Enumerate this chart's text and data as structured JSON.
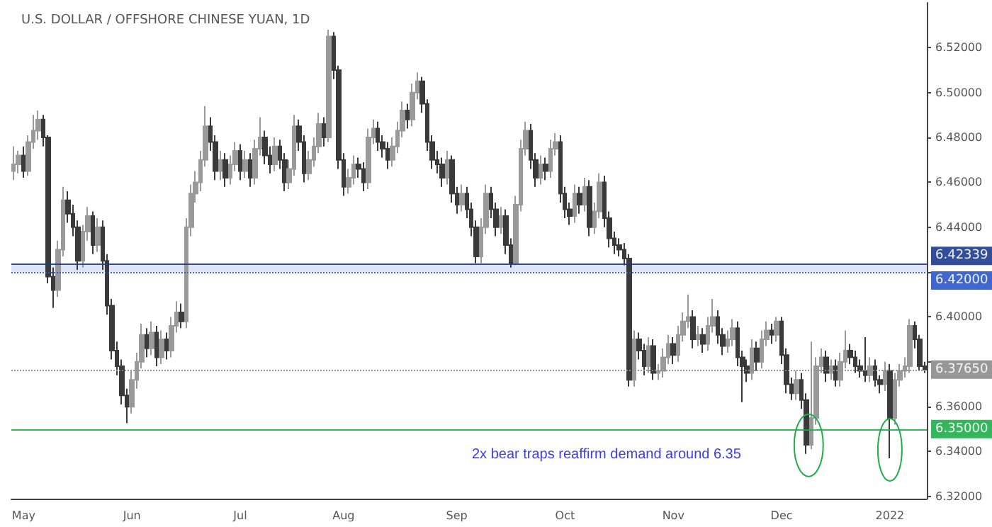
{
  "chart_data": {
    "type": "candlestick",
    "title": "U.S. DOLLAR / OFFSHORE CHINESE YUAN, 1D",
    "categories": [
      null,
      null,
      "May",
      null,
      null,
      null,
      null,
      null,
      null,
      null,
      null,
      null,
      null,
      null,
      null,
      null,
      null,
      null,
      null,
      null,
      null,
      null,
      null,
      null,
      "Jun",
      null,
      null,
      null,
      null,
      null,
      null,
      null,
      null,
      null,
      null,
      null,
      null,
      null,
      null,
      null,
      null,
      null,
      null,
      null,
      null,
      null,
      "Jul",
      null,
      null,
      null,
      null,
      null,
      null,
      null,
      null,
      null,
      null,
      null,
      null,
      null,
      null,
      null,
      null,
      null,
      null,
      null,
      null,
      "Aug",
      null,
      null,
      null,
      null,
      null,
      null,
      null,
      null,
      null,
      null,
      null,
      null,
      null,
      null,
      null,
      null,
      null,
      null,
      null,
      null,
      null,
      null,
      "Sep",
      null,
      null,
      null,
      null,
      null,
      null,
      null,
      null,
      null,
      null,
      null,
      null,
      null,
      null,
      null,
      null,
      null,
      null,
      null,
      null,
      null,
      "Oct",
      null,
      null,
      null,
      null,
      null,
      null,
      null,
      null,
      null,
      null,
      null,
      null,
      null,
      null,
      null,
      null,
      null,
      null,
      null,
      null,
      null,
      "Nov",
      null,
      null,
      null,
      null,
      null,
      null,
      null,
      null,
      null,
      null,
      null,
      null,
      null,
      null,
      null,
      null,
      null,
      null,
      null,
      null,
      null,
      "Dec",
      null,
      null,
      null,
      null,
      null,
      null,
      null,
      null,
      null,
      null,
      null,
      null,
      null,
      null,
      null,
      null,
      null,
      null,
      null,
      null,
      null,
      "2022",
      null,
      null,
      null,
      null,
      null,
      null,
      null
    ],
    "series": [
      {
        "colors": [
          "#9a9a9a",
          "#9a9a9a",
          "#3a3a3a",
          "#9a9a9a",
          "#9a9a9a",
          "#9a9a9a",
          "#3a3a3a",
          "#3a3a3a",
          "#3a3a3a",
          "#9a9a9a",
          "#9a9a9a",
          "#3a3a3a",
          "#3a3a3a",
          "#3a3a3a",
          "#9a9a9a",
          "#9a9a9a",
          "#3a3a3a",
          "#9a9a9a",
          "#3a3a3a",
          "#3a3a3a",
          "#3a3a3a",
          "#3a3a3a",
          "#3a3a3a",
          "#3a3a3a",
          "#9a9a9a",
          "#9a9a9a",
          "#9a9a9a",
          "#3a3a3a",
          "#9a9a9a",
          "#3a3a3a",
          "#9a9a9a",
          "#3a3a3a",
          "#9a9a9a",
          "#9a9a9a",
          "#3a3a3a",
          "#9a9a9a",
          "#9a9a9a",
          "#9a9a9a",
          "#9a9a9a",
          "#9a9a9a",
          "#3a3a3a",
          "#3a3a3a",
          "#9a9a9a",
          "#3a3a3a",
          "#9a9a9a",
          "#9a9a9a",
          "#3a3a3a",
          "#9a9a9a",
          "#3a3a3a",
          "#9a9a9a",
          "#9a9a9a",
          "#3a3a3a",
          "#3a3a3a",
          "#9a9a9a",
          "#3a3a3a",
          "#3a3a3a",
          "#9a9a9a",
          "#9a9a9a",
          "#3a3a3a",
          "#3a3a3a",
          "#9a9a9a",
          "#9a9a9a",
          "#9a9a9a",
          "#3a3a3a",
          "#9a9a9a",
          "#3a3a3a",
          "#3a3a3a",
          "#3a3a3a",
          "#9a9a9a",
          "#9a9a9a",
          "#3a3a3a",
          "#3a3a3a",
          "#9a9a9a",
          "#9a9a9a",
          "#3a3a3a",
          "#3a3a3a",
          "#3a3a3a",
          "#9a9a9a",
          "#9a9a9a",
          "#9a9a9a",
          "#3a3a3a",
          "#9a9a9a",
          "#9a9a9a",
          "#3a3a3a",
          "#3a3a3a",
          "#3a3a3a",
          "#3a3a3a",
          "#3a3a3a",
          "#9a9a9a",
          "#3a3a3a",
          "#3a3a3a",
          "#9a9a9a",
          "#3a3a3a",
          "#3a3a3a",
          "#3a3a3a",
          "#9a9a9a",
          "#9a9a9a",
          "#3a3a3a",
          "#3a3a3a",
          "#9a9a9a",
          "#3a3a3a",
          "#3a3a3a",
          "#9a9a9a",
          "#9a9a9a",
          "#9a9a9a",
          "#3a3a3a",
          "#3a3a3a",
          "#9a9a9a",
          "#3a3a3a",
          "#9a9a9a",
          "#9a9a9a",
          "#3a3a3a",
          "#3a3a3a",
          "#3a3a3a",
          "#9a9a9a",
          "#3a3a3a",
          "#9a9a9a",
          "#3a3a3a",
          "#9a9a9a",
          "#9a9a9a",
          "#3a3a3a",
          "#3a3a3a",
          "#3a3a3a",
          "#3a3a3a",
          "#3a3a3a",
          "#3a3a3a",
          "#9a9a9a",
          "#3a3a3a",
          "#3a3a3a",
          "#9a9a9a",
          "#3a3a3a",
          "#9a9a9a",
          "#9a9a9a",
          "#9a9a9a",
          "#3a3a3a",
          "#9a9a9a",
          "#9a9a9a",
          "#9a9a9a",
          "#3a3a3a",
          "#9a9a9a",
          "#3a3a3a",
          "#9a9a9a",
          "#9a9a9a",
          "#3a3a3a",
          "#3a3a3a",
          "#9a9a9a",
          "#9a9a9a",
          "#3a3a3a",
          "#3a3a3a",
          "#3a3a3a",
          "#9a9a9a",
          "#3a3a3a",
          "#9a9a9a",
          "#9a9a9a",
          "#3a3a3a",
          "#9a9a9a",
          "#3a3a3a",
          "#3a3a3a",
          "#3a3a3a",
          "#9a9a9a",
          "#3a3a3a",
          "#3a3a3a",
          "#9a9a9a",
          "#9a9a9a",
          "#9a9a9a",
          "#3a3a3a",
          "#9a9a9a",
          "#3a3a3a",
          "#9a9a9a",
          "#9a9a9a",
          "#3a3a3a",
          "#3a3a3a",
          "#3a3a3a",
          "#3a3a3a",
          "#9a9a9a",
          "#3a3a3a",
          "#3a3a3a",
          "#9a9a9a",
          "#3a3a3a",
          "#9a9a9a",
          "#9a9a9a",
          "#9a9a9a",
          "#9a9a9a",
          "#3a3a3a",
          "#3a3a3a",
          "#3a3a3a"
        ],
        "ohlc": [
          [
            6.465,
            6.476,
            6.461,
            6.468
          ],
          [
            6.468,
            6.474,
            6.464,
            6.472
          ],
          [
            6.472,
            6.476,
            6.462,
            6.465
          ],
          [
            6.465,
            6.481,
            6.463,
            6.478
          ],
          [
            6.478,
            6.49,
            6.475,
            6.483
          ],
          [
            6.483,
            6.492,
            6.479,
            6.488
          ],
          [
            6.488,
            6.49,
            6.476,
            6.48
          ],
          [
            6.48,
            6.481,
            6.415,
            6.418
          ],
          [
            6.418,
            6.422,
            6.404,
            6.412
          ],
          [
            6.412,
            6.434,
            6.409,
            6.43
          ],
          [
            6.43,
            6.458,
            6.427,
            6.452
          ],
          [
            6.452,
            6.456,
            6.442,
            6.446
          ],
          [
            6.446,
            6.45,
            6.436,
            6.44
          ],
          [
            6.44,
            6.443,
            6.421,
            6.425
          ],
          [
            6.425,
            6.441,
            6.422,
            6.438
          ],
          [
            6.438,
            6.449,
            6.434,
            6.445
          ],
          [
            6.445,
            6.447,
            6.428,
            6.432
          ],
          [
            6.432,
            6.444,
            6.429,
            6.44
          ],
          [
            6.44,
            6.443,
            6.421,
            6.425
          ],
          [
            6.425,
            6.428,
            6.401,
            6.405
          ],
          [
            6.405,
            6.408,
            6.381,
            6.385
          ],
          [
            6.385,
            6.389,
            6.374,
            6.378
          ],
          [
            6.378,
            6.381,
            6.361,
            6.365
          ],
          [
            6.365,
            6.368,
            6.3526,
            6.36
          ],
          [
            6.36,
            6.376,
            6.357,
            6.372
          ],
          [
            6.372,
            6.384,
            6.368,
            6.38
          ],
          [
            6.38,
            6.397,
            6.377,
            6.392
          ],
          [
            6.392,
            6.395,
            6.382,
            6.386
          ],
          [
            6.386,
            6.398,
            6.383,
            6.393
          ],
          [
            6.393,
            6.396,
            6.378,
            6.382
          ],
          [
            6.382,
            6.394,
            6.379,
            6.39
          ],
          [
            6.39,
            6.393,
            6.381,
            6.385
          ],
          [
            6.385,
            6.4,
            6.382,
            6.396
          ],
          [
            6.396,
            6.407,
            6.393,
            6.402
          ],
          [
            6.402,
            6.406,
            6.395,
            6.398
          ],
          [
            6.398,
            6.444,
            6.395,
            6.44
          ],
          [
            6.44,
            6.459,
            6.436,
            6.455
          ],
          [
            6.455,
            6.465,
            6.451,
            6.46
          ],
          [
            6.46,
            6.474,
            6.456,
            6.47
          ],
          [
            6.47,
            6.494,
            6.467,
            6.485
          ],
          [
            6.485,
            6.489,
            6.474,
            6.478
          ],
          [
            6.478,
            6.481,
            6.461,
            6.465
          ],
          [
            6.465,
            6.474,
            6.461,
            6.47
          ],
          [
            6.47,
            6.473,
            6.458,
            6.462
          ],
          [
            6.462,
            6.472,
            6.459,
            6.468
          ],
          [
            6.468,
            6.478,
            6.465,
            6.474
          ],
          [
            6.474,
            6.477,
            6.461,
            6.465
          ],
          [
            6.465,
            6.474,
            6.462,
            6.47
          ],
          [
            6.47,
            6.473,
            6.458,
            6.462
          ],
          [
            6.462,
            6.479,
            6.459,
            6.475
          ],
          [
            6.475,
            6.489,
            6.472,
            6.48
          ],
          [
            6.48,
            6.483,
            6.468,
            6.472
          ],
          [
            6.472,
            6.476,
            6.464,
            6.468
          ],
          [
            6.468,
            6.48,
            6.465,
            6.476
          ],
          [
            6.476,
            6.479,
            6.466,
            6.47
          ],
          [
            6.47,
            6.473,
            6.456,
            6.46
          ],
          [
            6.46,
            6.47,
            6.457,
            6.466
          ],
          [
            6.466,
            6.49,
            6.463,
            6.485
          ],
          [
            6.485,
            6.488,
            6.474,
            6.478
          ],
          [
            6.478,
            6.481,
            6.46,
            6.464
          ],
          [
            6.464,
            6.474,
            6.461,
            6.47
          ],
          [
            6.47,
            6.48,
            6.467,
            6.476
          ],
          [
            6.476,
            6.491,
            6.473,
            6.486
          ],
          [
            6.486,
            6.489,
            6.476,
            6.48
          ],
          [
            6.48,
            6.528,
            6.478,
            6.525
          ],
          [
            6.525,
            6.527,
            6.506,
            6.51
          ],
          [
            6.51,
            6.512,
            6.466,
            6.47
          ],
          [
            6.47,
            6.473,
            6.454,
            6.458
          ],
          [
            6.458,
            6.466,
            6.455,
            6.462
          ],
          [
            6.462,
            6.472,
            6.459,
            6.468
          ],
          [
            6.468,
            6.471,
            6.462,
            6.466
          ],
          [
            6.466,
            6.469,
            6.456,
            6.46
          ],
          [
            6.46,
            6.484,
            6.457,
            6.48
          ],
          [
            6.48,
            6.488,
            6.477,
            6.484
          ],
          [
            6.484,
            6.487,
            6.474,
            6.478
          ],
          [
            6.478,
            6.481,
            6.471,
            6.475
          ],
          [
            6.475,
            6.478,
            6.466,
            6.47
          ],
          [
            6.47,
            6.48,
            6.467,
            6.476
          ],
          [
            6.476,
            6.487,
            6.473,
            6.483
          ],
          [
            6.483,
            6.496,
            6.48,
            6.492
          ],
          [
            6.492,
            6.495,
            6.484,
            6.488
          ],
          [
            6.488,
            6.504,
            6.485,
            6.5
          ],
          [
            6.5,
            6.509,
            6.497,
            6.505
          ],
          [
            6.505,
            6.507,
            6.491,
            6.495
          ],
          [
            6.495,
            6.497,
            6.474,
            6.478
          ],
          [
            6.478,
            6.481,
            6.466,
            6.47
          ],
          [
            6.47,
            6.474,
            6.464,
            6.468
          ],
          [
            6.468,
            6.471,
            6.458,
            6.462
          ],
          [
            6.462,
            6.474,
            6.459,
            6.47
          ],
          [
            6.47,
            6.472,
            6.451,
            6.455
          ],
          [
            6.455,
            6.458,
            6.446,
            6.45
          ],
          [
            6.45,
            6.459,
            6.447,
            6.455
          ],
          [
            6.455,
            6.458,
            6.444,
            6.448
          ],
          [
            6.448,
            6.451,
            6.436,
            6.44
          ],
          [
            6.44,
            6.443,
            6.424,
            6.427
          ],
          [
            6.427,
            6.444,
            6.424,
            6.44
          ],
          [
            6.44,
            6.459,
            6.437,
            6.455
          ],
          [
            6.455,
            6.458,
            6.444,
            6.448
          ],
          [
            6.448,
            6.451,
            6.436,
            6.44
          ],
          [
            6.44,
            6.449,
            6.437,
            6.445
          ],
          [
            6.445,
            6.448,
            6.428,
            6.432
          ],
          [
            6.432,
            6.435,
            6.422,
            6.424
          ],
          [
            6.424,
            6.454,
            6.423,
            6.45
          ],
          [
            6.45,
            6.479,
            6.447,
            6.475
          ],
          [
            6.475,
            6.487,
            6.472,
            6.483
          ],
          [
            6.483,
            6.486,
            6.466,
            6.47
          ],
          [
            6.47,
            6.473,
            6.458,
            6.462
          ],
          [
            6.462,
            6.472,
            6.459,
            6.468
          ],
          [
            6.468,
            6.471,
            6.461,
            6.465
          ],
          [
            6.465,
            6.479,
            6.462,
            6.475
          ],
          [
            6.475,
            6.482,
            6.472,
            6.478
          ],
          [
            6.478,
            6.481,
            6.451,
            6.455
          ],
          [
            6.455,
            6.458,
            6.444,
            6.448
          ],
          [
            6.448,
            6.451,
            6.441,
            6.445
          ],
          [
            6.445,
            6.459,
            6.442,
            6.455
          ],
          [
            6.455,
            6.458,
            6.446,
            6.45
          ],
          [
            6.45,
            6.462,
            6.447,
            6.458
          ],
          [
            6.458,
            6.461,
            6.436,
            6.44
          ],
          [
            6.44,
            6.451,
            6.437,
            6.447
          ],
          [
            6.447,
            6.464,
            6.444,
            6.46
          ],
          [
            6.46,
            6.463,
            6.44,
            6.444
          ],
          [
            6.444,
            6.447,
            6.431,
            6.435
          ],
          [
            6.435,
            6.438,
            6.428,
            6.432
          ],
          [
            6.432,
            6.435,
            6.427,
            6.43
          ],
          [
            6.43,
            6.433,
            6.423,
            6.426
          ],
          [
            6.426,
            6.428,
            6.369,
            6.372
          ],
          [
            6.372,
            6.394,
            6.369,
            6.39
          ],
          [
            6.39,
            6.393,
            6.381,
            6.385
          ],
          [
            6.385,
            6.388,
            6.374,
            6.378
          ],
          [
            6.378,
            6.391,
            6.375,
            6.387
          ],
          [
            6.387,
            6.39,
            6.372,
            6.375
          ],
          [
            6.375,
            6.379,
            6.372,
            6.376
          ],
          [
            6.376,
            6.386,
            6.373,
            6.382
          ],
          [
            6.382,
            6.392,
            6.379,
            6.388
          ],
          [
            6.388,
            6.391,
            6.379,
            6.383
          ],
          [
            6.383,
            6.396,
            6.38,
            6.392
          ],
          [
            6.392,
            6.402,
            6.389,
            6.398
          ],
          [
            6.398,
            6.41,
            6.395,
            6.4
          ],
          [
            6.4,
            6.403,
            6.386,
            6.39
          ],
          [
            6.39,
            6.396,
            6.387,
            6.392
          ],
          [
            6.392,
            6.395,
            6.384,
            6.388
          ],
          [
            6.388,
            6.4,
            6.385,
            6.396
          ],
          [
            6.396,
            6.408,
            6.393,
            6.4
          ],
          [
            6.4,
            6.403,
            6.388,
            6.392
          ],
          [
            6.392,
            6.395,
            6.383,
            6.387
          ],
          [
            6.387,
            6.394,
            6.384,
            6.39
          ],
          [
            6.39,
            6.399,
            6.387,
            6.395
          ],
          [
            6.395,
            6.398,
            6.378,
            6.382
          ],
          [
            6.382,
            6.385,
            6.362,
            6.378
          ],
          [
            6.378,
            6.381,
            6.371,
            6.375
          ],
          [
            6.375,
            6.39,
            6.372,
            6.386
          ],
          [
            6.386,
            6.389,
            6.376,
            6.38
          ],
          [
            6.38,
            6.394,
            6.377,
            6.39
          ],
          [
            6.39,
            6.398,
            6.387,
            6.394
          ],
          [
            6.394,
            6.397,
            6.388,
            6.392
          ],
          [
            6.392,
            6.4,
            6.389,
            6.398
          ],
          [
            6.398,
            6.4,
            6.379,
            6.383
          ],
          [
            6.383,
            6.386,
            6.366,
            6.37
          ],
          [
            6.37,
            6.373,
            6.363,
            6.366
          ],
          [
            6.366,
            6.376,
            6.363,
            6.372
          ],
          [
            6.372,
            6.375,
            6.359,
            6.363
          ],
          [
            6.363,
            6.366,
            6.339,
            6.343
          ],
          [
            6.343,
            6.389,
            6.341,
            6.355
          ],
          [
            6.355,
            6.382,
            6.352,
            6.378
          ],
          [
            6.378,
            6.386,
            6.375,
            6.382
          ],
          [
            6.382,
            6.385,
            6.371,
            6.375
          ],
          [
            6.375,
            6.381,
            6.372,
            6.378
          ],
          [
            6.378,
            6.381,
            6.369,
            6.372
          ],
          [
            6.372,
            6.384,
            6.369,
            6.38
          ],
          [
            6.38,
            6.394,
            6.377,
            6.385
          ],
          [
            6.385,
            6.388,
            6.379,
            6.382
          ],
          [
            6.382,
            6.385,
            6.375,
            6.378
          ],
          [
            6.378,
            6.381,
            6.373,
            6.376
          ],
          [
            6.376,
            6.391,
            6.371,
            6.374
          ],
          [
            6.374,
            6.382,
            6.371,
            6.378
          ],
          [
            6.378,
            6.381,
            6.369,
            6.372
          ],
          [
            6.372,
            6.374,
            6.366,
            6.37
          ],
          [
            6.37,
            6.38,
            6.367,
            6.376
          ],
          [
            6.376,
            6.379,
            6.337,
            6.355
          ],
          [
            6.355,
            6.375,
            6.352,
            6.372
          ],
          [
            6.372,
            6.379,
            6.369,
            6.376
          ],
          [
            6.376,
            6.382,
            6.373,
            6.378
          ],
          [
            6.378,
            6.399,
            6.375,
            6.396
          ],
          [
            6.396,
            6.398,
            6.386,
            6.39
          ],
          [
            6.39,
            6.392,
            6.376,
            6.378
          ],
          [
            6.378,
            6.38,
            6.375,
            6.3765
          ]
        ]
      }
    ],
    "ylim": [
      6.319,
      6.54
    ],
    "yticks": [
      {
        "value": 6.32,
        "label": "6.32000"
      },
      {
        "value": 6.34,
        "label": "6.34000"
      },
      {
        "value": 6.36,
        "label": "6.36000"
      },
      {
        "value": 6.38,
        "label": null
      },
      {
        "value": 6.4,
        "label": "6.40000"
      },
      {
        "value": 6.42,
        "label": null
      },
      {
        "value": 6.44,
        "label": "6.44000"
      },
      {
        "value": 6.46,
        "label": "6.46000"
      },
      {
        "value": 6.48,
        "label": "6.48000"
      },
      {
        "value": 6.5,
        "label": "6.50000"
      },
      {
        "value": 6.52,
        "label": "6.52000"
      }
    ],
    "grid": false,
    "ref_lines": [
      {
        "axis": "y",
        "value": 6.42339,
        "label": "6.42339",
        "color": "#1c3a8f",
        "line_style": "solid"
      },
      {
        "axis": "y",
        "value": 6.42,
        "label": "6.42000",
        "color": "#2a56c6",
        "line_style": "dotted"
      },
      {
        "axis": "y",
        "value": 6.3765,
        "label": "6.37650",
        "color": "#8c8c8c",
        "line_style": "dotted"
      },
      {
        "axis": "y",
        "value": 6.35,
        "label": "6.35000",
        "color": "#1fae4a",
        "line_style": "solid"
      }
    ],
    "bands": [
      {
        "axis": "y",
        "from": 6.42,
        "to": 6.42339,
        "color": "#dde4f5"
      }
    ],
    "annotations": [
      "2x bear traps reaffirm demand around 6.35"
    ]
  }
}
